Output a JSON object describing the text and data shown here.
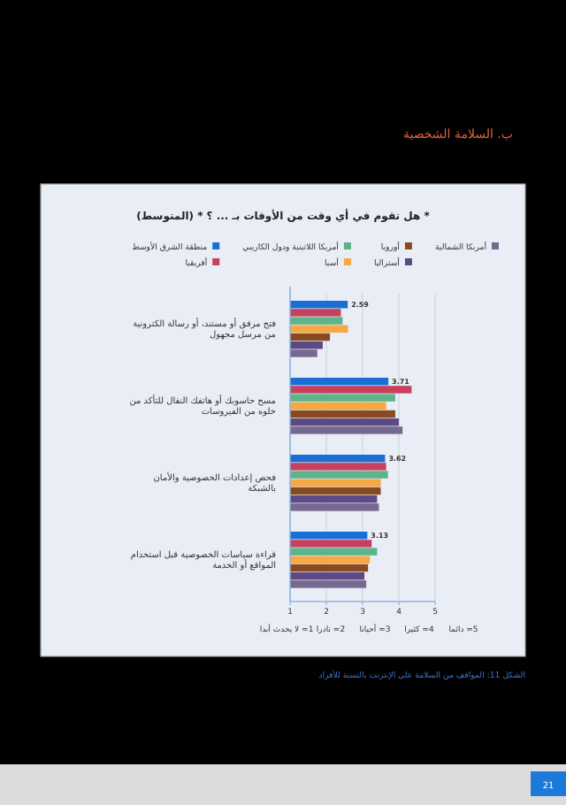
{
  "chart_data": {
    "type": "bar",
    "orientation": "horizontal",
    "title": "* هل تقوم في أي وقت من الأوقات بـ ... ؟ * (المتوسط)",
    "categories": [
      "فتح مرفق أو مستند، أو رسالة الكترونية من مرسل مجهول",
      "مسح حاسوبك أو هاتفك النقال للتأكد من خلوه من الفيروسات",
      "فحص إعدادات الخصوصية والأمان بالشبكة",
      "قراءة سياسات الخصوصية قبل استخدام المواقع أو الخدمة"
    ],
    "series": [
      {
        "name": "منطقة الشرق الأوسط",
        "color": "#1a6fd6",
        "values": [
          2.59,
          3.71,
          3.62,
          3.13
        ],
        "value_labels": [
          "2.59",
          "3.71",
          "3.62",
          "3.13"
        ]
      },
      {
        "name": "أفريقيا",
        "color": "#c8405f",
        "values": [
          2.4,
          4.35,
          3.65,
          3.25
        ]
      },
      {
        "name": "أمريكا اللاتينية ودول الكاريبي",
        "color": "#5db38a",
        "values": [
          2.45,
          3.9,
          3.7,
          3.4
        ]
      },
      {
        "name": "آسيا",
        "color": "#f6a845",
        "values": [
          2.6,
          3.65,
          3.5,
          3.2
        ]
      },
      {
        "name": "أوروبا",
        "color": "#8a4a1f",
        "values": [
          2.1,
          3.9,
          3.5,
          3.15
        ]
      },
      {
        "name": "أستراليا",
        "color": "#5b4a84",
        "values": [
          1.9,
          4.0,
          3.4,
          3.05
        ]
      },
      {
        "name": "أمريكا الشمالية",
        "color": "#76688e",
        "values": [
          1.75,
          4.1,
          3.45,
          3.1
        ]
      }
    ],
    "xlim": [
      1,
      5
    ],
    "xticks": [
      1,
      2,
      3,
      4,
      5
    ],
    "grid": "x",
    "legend": "top",
    "annotations": [
      "ب. السلامة الشخصية",
      "5= دائما",
      "4= كثيرا",
      "3= أحيانا",
      "2= نادرا",
      "1= لا يحدث أبدا",
      "الشكل 11: المواقف من السلامة على الإنترنت بالنسبة للأفراد",
      "21"
    ]
  }
}
